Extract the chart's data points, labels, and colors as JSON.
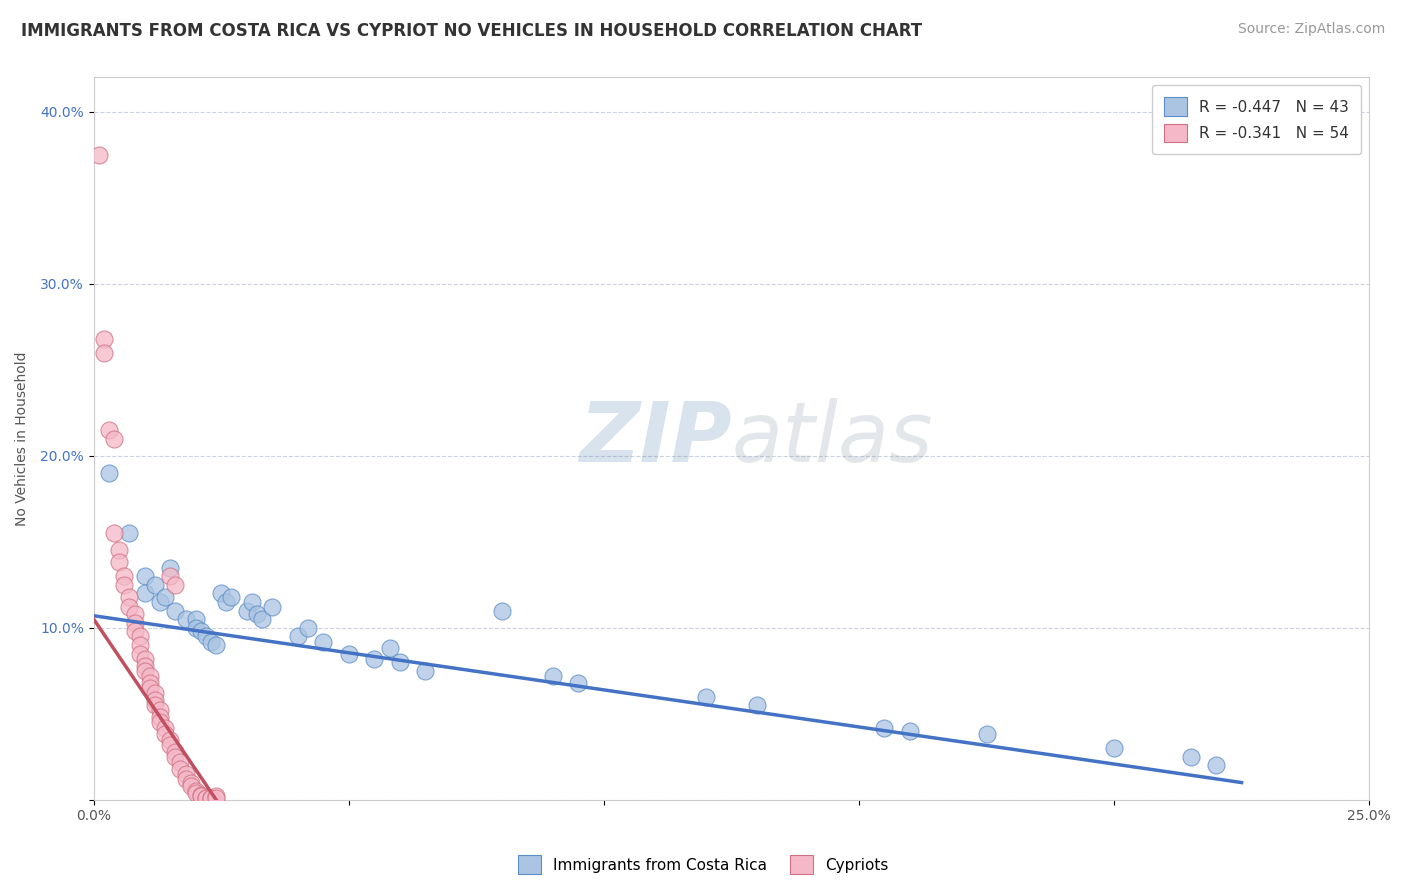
{
  "title": "IMMIGRANTS FROM COSTA RICA VS CYPRIOT NO VEHICLES IN HOUSEHOLD CORRELATION CHART",
  "source": "Source: ZipAtlas.com",
  "ylabel": "No Vehicles in Household",
  "xlim": [
    0.0,
    0.25
  ],
  "ylim": [
    0.0,
    0.42
  ],
  "xticks": [
    0.0,
    0.05,
    0.1,
    0.15,
    0.2,
    0.25
  ],
  "yticks": [
    0.0,
    0.1,
    0.2,
    0.3,
    0.4
  ],
  "xtick_labels": [
    "0.0%",
    "",
    "",
    "",
    "",
    "25.0%"
  ],
  "ytick_labels": [
    "",
    "10.0%",
    "20.0%",
    "30.0%",
    "40.0%"
  ],
  "watermark_zip": "ZIP",
  "watermark_atlas": "atlas",
  "legend_label1": "Immigrants from Costa Rica",
  "legend_label2": "Cypriots",
  "R1": -0.447,
  "N1": 43,
  "R2": -0.341,
  "N2": 54,
  "blue_color": "#aac4e2",
  "blue_edge_color": "#5b8dc8",
  "blue_line_color": "#4472c4",
  "pink_color": "#f4b8c8",
  "pink_edge_color": "#d07080",
  "pink_line_color": "#c05060",
  "blue_scatter": [
    [
      0.003,
      0.19
    ],
    [
      0.007,
      0.155
    ],
    [
      0.01,
      0.13
    ],
    [
      0.01,
      0.12
    ],
    [
      0.012,
      0.125
    ],
    [
      0.013,
      0.115
    ],
    [
      0.014,
      0.118
    ],
    [
      0.015,
      0.135
    ],
    [
      0.016,
      0.11
    ],
    [
      0.018,
      0.105
    ],
    [
      0.02,
      0.105
    ],
    [
      0.02,
      0.1
    ],
    [
      0.021,
      0.098
    ],
    [
      0.022,
      0.095
    ],
    [
      0.023,
      0.092
    ],
    [
      0.024,
      0.09
    ],
    [
      0.025,
      0.12
    ],
    [
      0.026,
      0.115
    ],
    [
      0.027,
      0.118
    ],
    [
      0.03,
      0.11
    ],
    [
      0.031,
      0.115
    ],
    [
      0.032,
      0.108
    ],
    [
      0.033,
      0.105
    ],
    [
      0.035,
      0.112
    ],
    [
      0.04,
      0.095
    ],
    [
      0.042,
      0.1
    ],
    [
      0.045,
      0.092
    ],
    [
      0.05,
      0.085
    ],
    [
      0.055,
      0.082
    ],
    [
      0.058,
      0.088
    ],
    [
      0.06,
      0.08
    ],
    [
      0.065,
      0.075
    ],
    [
      0.08,
      0.11
    ],
    [
      0.09,
      0.072
    ],
    [
      0.095,
      0.068
    ],
    [
      0.12,
      0.06
    ],
    [
      0.13,
      0.055
    ],
    [
      0.155,
      0.042
    ],
    [
      0.16,
      0.04
    ],
    [
      0.175,
      0.038
    ],
    [
      0.2,
      0.03
    ],
    [
      0.215,
      0.025
    ],
    [
      0.22,
      0.02
    ]
  ],
  "pink_scatter": [
    [
      0.001,
      0.375
    ],
    [
      0.002,
      0.268
    ],
    [
      0.002,
      0.26
    ],
    [
      0.003,
      0.215
    ],
    [
      0.004,
      0.21
    ],
    [
      0.004,
      0.155
    ],
    [
      0.005,
      0.145
    ],
    [
      0.005,
      0.138
    ],
    [
      0.006,
      0.13
    ],
    [
      0.006,
      0.125
    ],
    [
      0.007,
      0.118
    ],
    [
      0.007,
      0.112
    ],
    [
      0.008,
      0.108
    ],
    [
      0.008,
      0.103
    ],
    [
      0.008,
      0.098
    ],
    [
      0.009,
      0.095
    ],
    [
      0.009,
      0.09
    ],
    [
      0.009,
      0.085
    ],
    [
      0.01,
      0.082
    ],
    [
      0.01,
      0.078
    ],
    [
      0.01,
      0.075
    ],
    [
      0.011,
      0.072
    ],
    [
      0.011,
      0.068
    ],
    [
      0.011,
      0.065
    ],
    [
      0.012,
      0.062
    ],
    [
      0.012,
      0.058
    ],
    [
      0.012,
      0.055
    ],
    [
      0.013,
      0.052
    ],
    [
      0.013,
      0.048
    ],
    [
      0.013,
      0.045
    ],
    [
      0.014,
      0.042
    ],
    [
      0.014,
      0.038
    ],
    [
      0.015,
      0.035
    ],
    [
      0.015,
      0.032
    ],
    [
      0.015,
      0.13
    ],
    [
      0.016,
      0.125
    ],
    [
      0.016,
      0.028
    ],
    [
      0.016,
      0.025
    ],
    [
      0.017,
      0.022
    ],
    [
      0.017,
      0.018
    ],
    [
      0.018,
      0.015
    ],
    [
      0.018,
      0.012
    ],
    [
      0.019,
      0.01
    ],
    [
      0.019,
      0.008
    ],
    [
      0.02,
      0.005
    ],
    [
      0.02,
      0.004
    ],
    [
      0.021,
      0.003
    ],
    [
      0.021,
      0.002
    ],
    [
      0.022,
      0.001
    ],
    [
      0.022,
      0.001
    ],
    [
      0.023,
      0.001
    ],
    [
      0.023,
      0.001
    ],
    [
      0.024,
      0.002
    ],
    [
      0.024,
      0.001
    ]
  ],
  "blue_line_x": [
    0.0,
    0.225
  ],
  "blue_line_y": [
    0.107,
    0.01
  ],
  "pink_line_x": [
    0.0,
    0.024
  ],
  "pink_line_y": [
    0.105,
    0.0
  ],
  "title_fontsize": 12,
  "axis_label_fontsize": 10,
  "tick_fontsize": 10,
  "legend_fontsize": 11,
  "source_fontsize": 10
}
